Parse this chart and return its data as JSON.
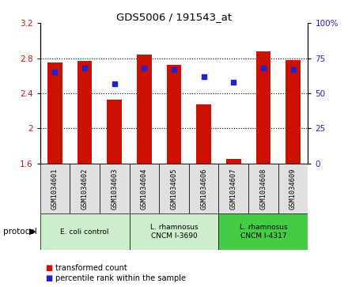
{
  "title": "GDS5006 / 191543_at",
  "samples": [
    "GSM1034601",
    "GSM1034602",
    "GSM1034603",
    "GSM1034604",
    "GSM1034605",
    "GSM1034606",
    "GSM1034607",
    "GSM1034608",
    "GSM1034609"
  ],
  "transformed_count": [
    2.75,
    2.77,
    2.33,
    2.84,
    2.72,
    2.27,
    1.65,
    2.88,
    2.78
  ],
  "percentile_rank": [
    65,
    68,
    57,
    68,
    67,
    62,
    58,
    68,
    67
  ],
  "ylim_left": [
    1.6,
    3.2
  ],
  "ylim_right": [
    0,
    100
  ],
  "yticks_left": [
    1.6,
    2.0,
    2.4,
    2.8,
    3.2
  ],
  "yticks_left_labels": [
    "1.6",
    "2",
    "2.4",
    "2.8",
    "3.2"
  ],
  "yticks_right": [
    0,
    25,
    50,
    75,
    100
  ],
  "yticks_right_labels": [
    "0",
    "25",
    "50",
    "75",
    "100%"
  ],
  "bar_color": "#CC1100",
  "dot_color": "#2222CC",
  "bar_bottom": 1.6,
  "group_labels": [
    "E. coli control",
    "L. rhamnosus\nCNCM I-3690",
    "L. rhamnosus\nCNCM I-4317"
  ],
  "group_ranges": [
    [
      0,
      3
    ],
    [
      3,
      6
    ],
    [
      6,
      9
    ]
  ],
  "group_facecolors": [
    "#cceecc",
    "#cceecc",
    "#44cc44"
  ],
  "protocol_label": "protocol",
  "legend_bar_label": "transformed count",
  "legend_dot_label": "percentile rank within the sample",
  "grid_dotted_at": [
    2.0,
    2.4,
    2.8
  ],
  "tick_label_color_left": "#CC1100",
  "tick_label_color_right": "#2222CC",
  "sample_cell_color": "#e0e0e0"
}
